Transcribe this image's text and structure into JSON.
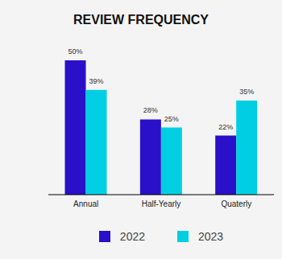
{
  "chart_data": {
    "type": "bar",
    "title": "REVIEW FREQUENCY",
    "categories": [
      "Annual",
      "Half-Yearly",
      "Quaterly"
    ],
    "series": [
      {
        "name": "2022",
        "color": "#2a10c8",
        "values": [
          50,
          28,
          22
        ],
        "value_labels": [
          "50%",
          "28%",
          "22%"
        ]
      },
      {
        "name": "2023",
        "color": "#00cfe3",
        "values": [
          39,
          25,
          35
        ],
        "value_labels": [
          "39%",
          "25%",
          "35%"
        ]
      }
    ],
    "data_labels": true,
    "tick_labels": "x",
    "legend": "bottom",
    "grid": false
  }
}
